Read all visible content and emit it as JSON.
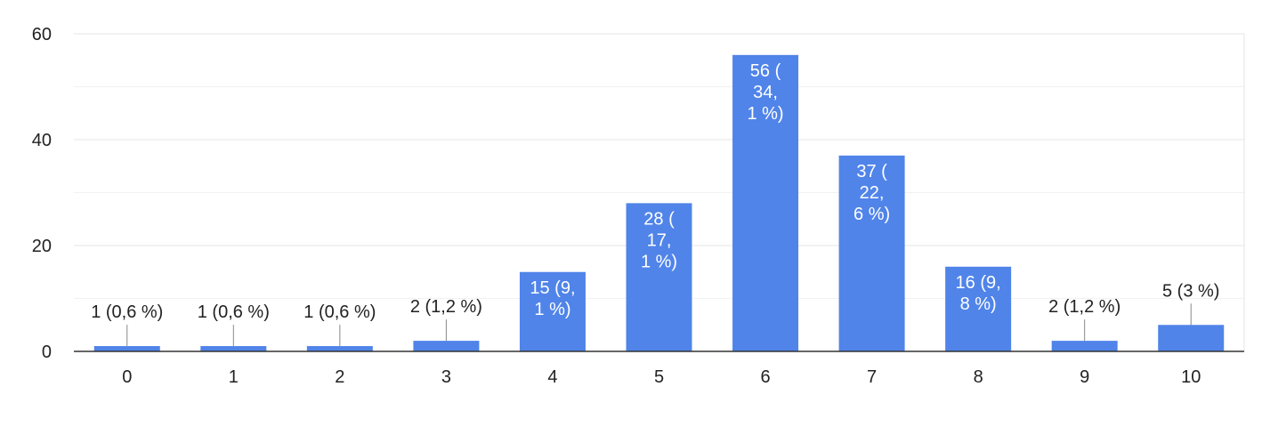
{
  "chart_data": {
    "type": "bar",
    "categories": [
      "0",
      "1",
      "2",
      "3",
      "4",
      "5",
      "6",
      "7",
      "8",
      "9",
      "10"
    ],
    "values": [
      1,
      1,
      1,
      2,
      15,
      28,
      56,
      37,
      16,
      2,
      5
    ],
    "data_labels": [
      [
        "1 (0,6 %)"
      ],
      [
        "1 (0,6 %)"
      ],
      [
        "1 (0,6 %)"
      ],
      [
        "2 (1,2 %)"
      ],
      [
        "15 (9,",
        "1 %)"
      ],
      [
        "28 (",
        "17,",
        "1 %)"
      ],
      [
        "56 (",
        "34,",
        "1 %)"
      ],
      [
        "37 (",
        "22,",
        "6 %)"
      ],
      [
        "16 (9,",
        "8 %)"
      ],
      [
        "2 (1,2 %)"
      ],
      [
        "5 (3 %)"
      ]
    ],
    "label_inside": [
      false,
      false,
      false,
      false,
      true,
      true,
      true,
      true,
      true,
      false,
      false
    ],
    "y_ticks": [
      0,
      20,
      40,
      60
    ],
    "ylim": [
      0,
      60
    ],
    "minor_grid": [
      10,
      30,
      50
    ],
    "title": "",
    "xlabel": "",
    "ylabel": "",
    "grid": true,
    "colors": {
      "bar": "#5084e9",
      "grid": "#e6e6e6",
      "axis": "#333333",
      "leader": "#888888"
    }
  }
}
